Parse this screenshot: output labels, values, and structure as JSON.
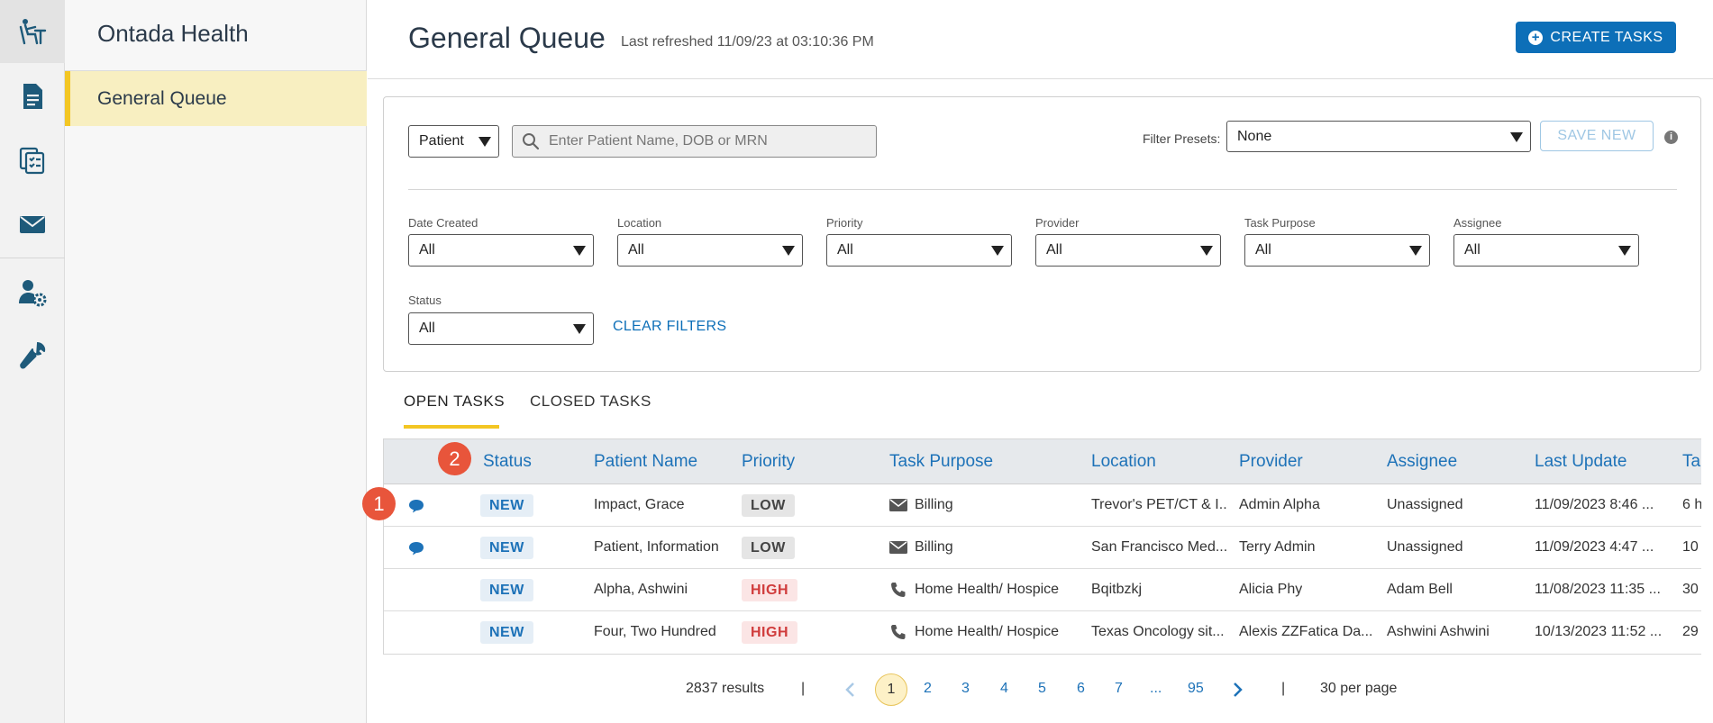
{
  "rail": {
    "items": [
      "desk-icon",
      "document-icon",
      "task-list-icon",
      "mail-icon",
      "user-settings-icon",
      "wrench-icon"
    ]
  },
  "sidebar": {
    "title": "Ontada Health",
    "items": [
      {
        "label": "General Queue",
        "active": true
      }
    ]
  },
  "header": {
    "title": "General Queue",
    "refreshed": "Last refreshed 11/09/23 at 03:10:36 PM",
    "create_label": "CREATE TASKS"
  },
  "filters": {
    "search_type": "Patient",
    "search_placeholder": "Enter Patient Name, DOB or MRN",
    "presets_label": "Filter Presets:",
    "presets_value": "None",
    "save_label": "SAVE NEW",
    "fields": [
      {
        "label": "Date Created",
        "value": "All"
      },
      {
        "label": "Location",
        "value": "All"
      },
      {
        "label": "Priority",
        "value": "All"
      },
      {
        "label": "Provider",
        "value": "All"
      },
      {
        "label": "Task Purpose",
        "value": "All"
      },
      {
        "label": "Assignee",
        "value": "All"
      },
      {
        "label": "Status",
        "value": "All"
      }
    ],
    "clear_label": "CLEAR FILTERS"
  },
  "tabs": [
    {
      "label": "OPEN TASKS",
      "active": true
    },
    {
      "label": "CLOSED TASKS",
      "active": false
    }
  ],
  "table": {
    "columns": [
      "Status",
      "Patient Name",
      "Priority",
      "Task Purpose",
      "Location",
      "Provider",
      "Assignee",
      "Last Update",
      "Ta"
    ],
    "rows": [
      {
        "chat": true,
        "status": "NEW",
        "patient": "Impact, Grace",
        "priority": "LOW",
        "purpose_icon": "mail-icon",
        "purpose": "Billing",
        "location": "Trevor's PET/CT & I...",
        "provider": "Admin Alpha",
        "assignee": "Unassigned",
        "updated": "11/09/2023 8:46 ...",
        "extra": "6 h"
      },
      {
        "chat": true,
        "status": "NEW",
        "patient": "Patient, Information",
        "priority": "LOW",
        "purpose_icon": "mail-icon",
        "purpose": "Billing",
        "location": "San Francisco Med...",
        "provider": "Terry Admin",
        "assignee": "Unassigned",
        "updated": "11/09/2023 4:47 ...",
        "extra": "10"
      },
      {
        "chat": false,
        "status": "NEW",
        "patient": "Alpha, Ashwini",
        "priority": "HIGH",
        "purpose_icon": "phone-icon",
        "purpose": "Home Health/ Hospice",
        "location": "Bqitbzkj",
        "provider": "Alicia Phy",
        "assignee": "Adam Bell",
        "updated": "11/08/2023 11:35 ...",
        "extra": "30"
      },
      {
        "chat": false,
        "status": "NEW",
        "patient": "Four, Two Hundred",
        "priority": "HIGH",
        "purpose_icon": "phone-icon",
        "purpose": "Home Health/ Hospice",
        "location": "Texas Oncology sit...",
        "provider": "Alexis ZZFatica Da...",
        "assignee": "Ashwini Ashwini",
        "updated": "10/13/2023 11:52 ...",
        "extra": "29"
      }
    ]
  },
  "badges": [
    "1",
    "2"
  ],
  "pagination": {
    "results": "2837 results",
    "sep": "|",
    "pages": [
      "1",
      "2",
      "3",
      "4",
      "5",
      "6",
      "7",
      "...",
      "95"
    ],
    "per_page": "30 per page"
  },
  "colors": {
    "accent": "#0d6fb8",
    "highlight": "#f3c623",
    "danger": "#d03c3c"
  }
}
